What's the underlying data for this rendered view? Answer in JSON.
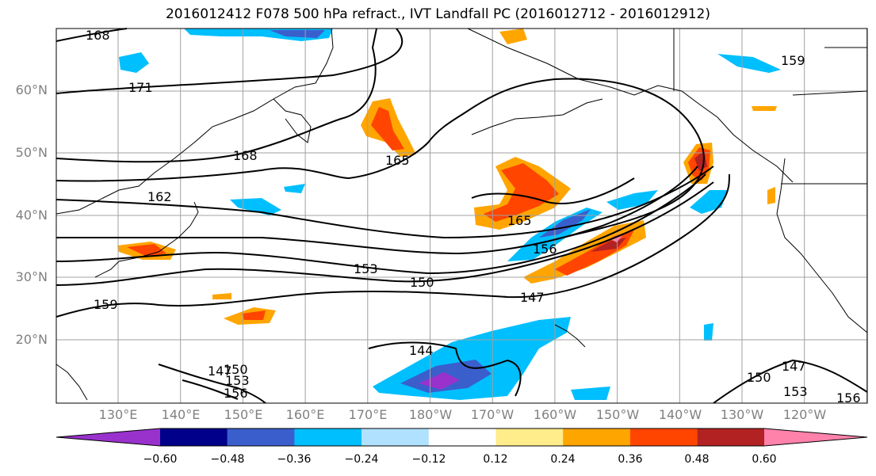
{
  "title": "2016012412 F078 500 hPa refract., IVT Landfall PC (2016012712 - 2016012912)",
  "map": {
    "lat_labels": [
      "60°N",
      "50°N",
      "40°N",
      "30°N",
      "20°N"
    ],
    "lon_labels": [
      "130°E",
      "140°E",
      "150°E",
      "160°E",
      "170°E",
      "180°W",
      "170°W",
      "160°W",
      "150°W",
      "140°W",
      "130°W",
      "120°W"
    ],
    "contour_labels": [
      "168",
      "171",
      "168",
      "165",
      "162",
      "165",
      "156",
      "153",
      "150",
      "147",
      "159",
      "147",
      "150",
      "153",
      "156",
      "144",
      "159",
      "150",
      "147",
      "153",
      "156"
    ],
    "gridline_color": "#a0a0a0",
    "contour_color": "#000000",
    "coastline_color": "#000000"
  },
  "colorbar": {
    "ticks": [
      "−0.60",
      "−0.48",
      "−0.36",
      "−0.24",
      "−0.12",
      "0.12",
      "0.24",
      "0.36",
      "0.48",
      "0.60"
    ],
    "colors": [
      "#9932cc",
      "#00008b",
      "#3a5fcd",
      "#00bfff",
      "#b0e2ff",
      "#ffffff",
      "#ffec8b",
      "#ffa500",
      "#ff4500",
      "#b22222",
      "#ff82ab"
    ],
    "extend": "both"
  }
}
